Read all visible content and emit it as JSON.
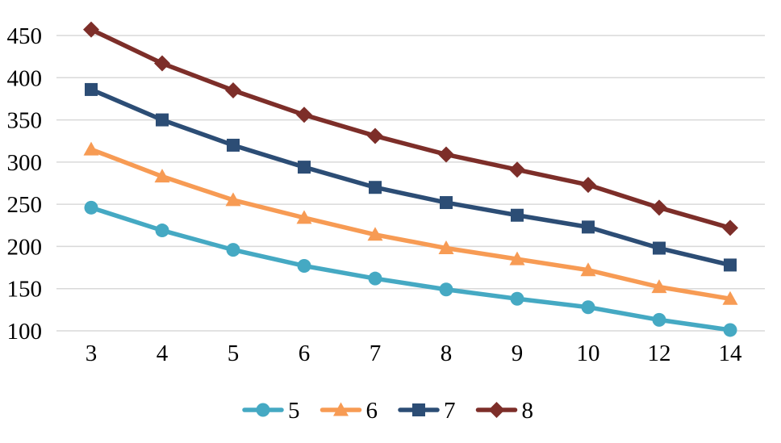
{
  "chart_data": {
    "type": "line",
    "title": "",
    "xlabel": "",
    "ylabel": "",
    "categories": [
      "3",
      "4",
      "5",
      "6",
      "7",
      "8",
      "9",
      "10",
      "12",
      "14"
    ],
    "series": [
      {
        "name": "5",
        "marker": "circle",
        "color": "#45A9C3",
        "values": [
          246,
          219,
          196,
          177,
          162,
          149,
          138,
          128,
          113,
          101
        ]
      },
      {
        "name": "6",
        "marker": "triangle",
        "color": "#F79B54",
        "values": [
          315,
          283,
          255,
          234,
          214,
          198,
          185,
          172,
          152,
          138
        ]
      },
      {
        "name": "7",
        "marker": "square",
        "color": "#2C4D75",
        "values": [
          386,
          350,
          320,
          294,
          270,
          252,
          237,
          223,
          198,
          178
        ]
      },
      {
        "name": "8",
        "marker": "diamond",
        "color": "#7D2E29",
        "values": [
          457,
          417,
          385,
          356,
          331,
          309,
          291,
          273,
          246,
          222
        ]
      }
    ],
    "y_ticks": [
      100,
      150,
      200,
      250,
      300,
      350,
      400,
      450
    ],
    "ylim": [
      100,
      450
    ],
    "grid": "horizontal-only",
    "legend_position": "bottom",
    "legend_labels": [
      "5",
      "6",
      "7",
      "8"
    ]
  },
  "colors": {
    "background": "#FFFFFF",
    "gridline": "#D9D9D9",
    "tick_text": "#000000"
  }
}
